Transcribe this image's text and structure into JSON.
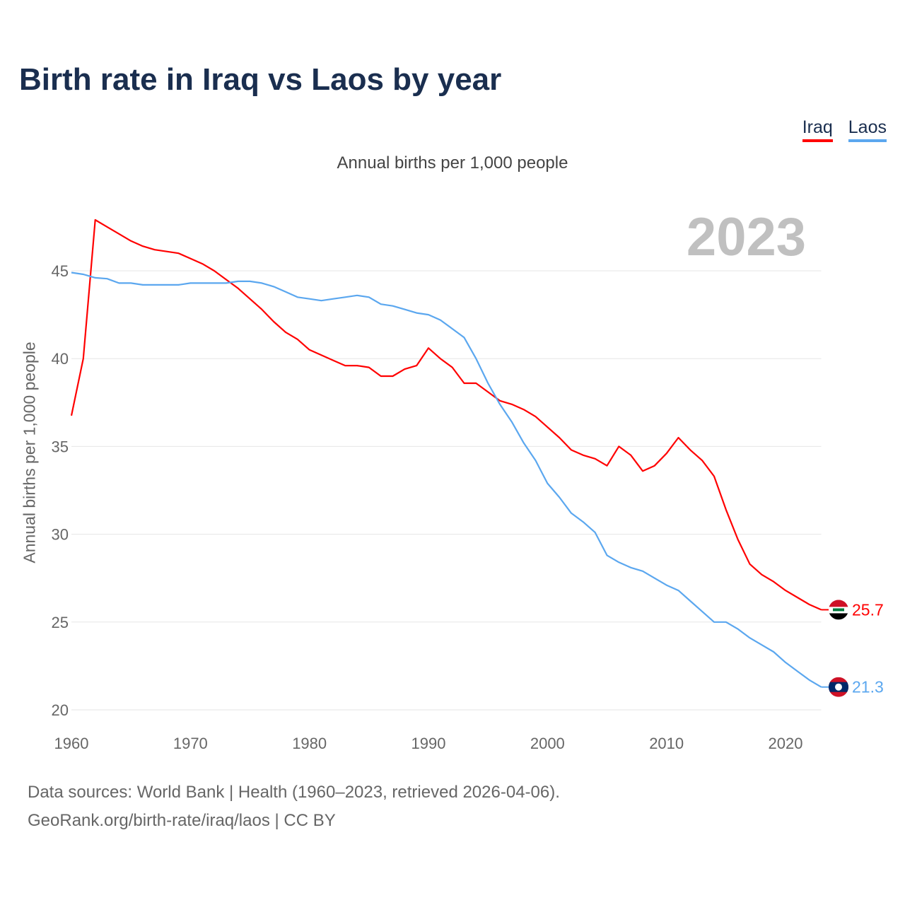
{
  "title": "Birth rate in Iraq vs Laos by year",
  "legend": [
    {
      "label": "Iraq",
      "color": "#ff0000"
    },
    {
      "label": "Laos",
      "color": "#5ba7ef"
    }
  ],
  "subtitle": "Annual births per 1,000 people",
  "current_year": "2023",
  "footer": {
    "line1": "Data sources: World Bank | Health (1960–2023, retrieved 2026-04-06).",
    "line2": "GeoRank.org/birth-rate/iraq/laos | CC BY"
  },
  "chart_data": {
    "type": "line",
    "title": "Birth rate in Iraq vs Laos by year",
    "xlabel": "",
    "ylabel": "Annual births per 1,000 people",
    "xlim": [
      1960,
      2023
    ],
    "ylim": [
      20,
      48
    ],
    "xticks": [
      1960,
      1970,
      1980,
      1990,
      2000,
      2010,
      2020
    ],
    "yticks": [
      20,
      25,
      30,
      35,
      40,
      45
    ],
    "grid": true,
    "legend_position": "top-right",
    "x_start": 1960,
    "series": [
      {
        "name": "Iraq",
        "color": "#ff0000",
        "end_label": "25.7",
        "values": [
          36.75,
          40.0,
          47.9,
          47.5,
          47.1,
          46.7,
          46.4,
          46.2,
          46.1,
          46.0,
          45.7,
          45.4,
          45.0,
          44.5,
          44.0,
          43.4,
          42.8,
          42.1,
          41.5,
          41.1,
          40.5,
          40.2,
          39.9,
          39.6,
          39.6,
          39.5,
          39.0,
          39.0,
          39.4,
          39.6,
          40.6,
          40.0,
          39.5,
          38.6,
          38.6,
          38.1,
          37.6,
          37.4,
          37.1,
          36.7,
          36.1,
          35.5,
          34.8,
          34.5,
          34.3,
          33.9,
          35.0,
          34.5,
          33.6,
          33.9,
          34.6,
          35.5,
          34.8,
          34.2,
          33.3,
          31.4,
          29.7,
          28.3,
          27.7,
          27.3,
          26.8,
          26.4,
          26.0,
          25.7
        ]
      },
      {
        "name": "Laos",
        "color": "#5ba7ef",
        "end_label": "21.3",
        "values": [
          44.9,
          44.8,
          44.6,
          44.55,
          44.3,
          44.3,
          44.2,
          44.2,
          44.2,
          44.2,
          44.3,
          44.3,
          44.3,
          44.3,
          44.4,
          44.4,
          44.3,
          44.1,
          43.8,
          43.5,
          43.4,
          43.3,
          43.4,
          43.5,
          43.6,
          43.5,
          43.1,
          43.0,
          42.8,
          42.6,
          42.5,
          42.2,
          41.7,
          41.2,
          40.0,
          38.6,
          37.4,
          36.4,
          35.2,
          34.2,
          32.9,
          32.1,
          31.2,
          30.7,
          30.1,
          28.8,
          28.4,
          28.1,
          27.9,
          27.5,
          27.1,
          26.8,
          26.2,
          25.6,
          25.0,
          25.0,
          24.6,
          24.1,
          23.7,
          23.3,
          22.7,
          22.2,
          21.7,
          21.3
        ]
      }
    ]
  }
}
